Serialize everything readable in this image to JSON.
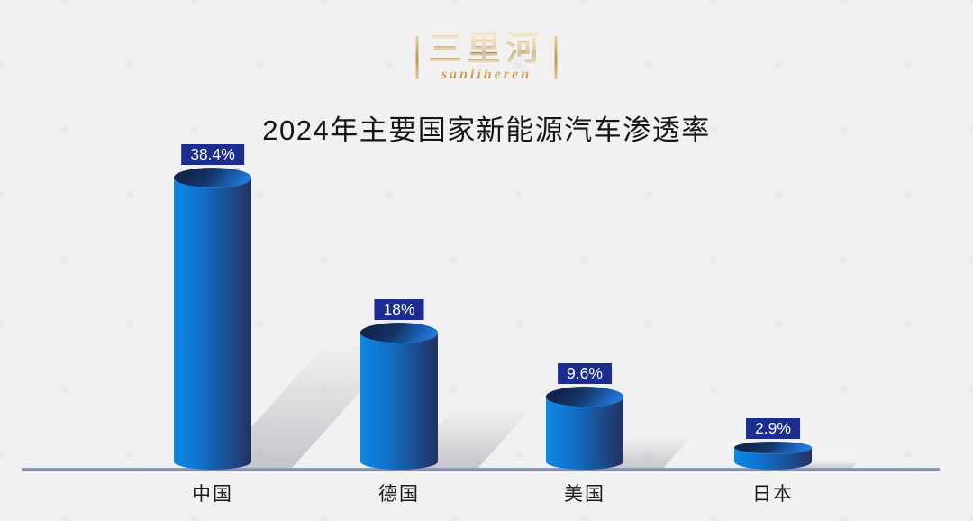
{
  "logo": {
    "title_cn": "三里河",
    "title_en": "sanliheren"
  },
  "header": {
    "title": "2024年主要国家新能源汽车渗透率"
  },
  "chart_data": {
    "type": "bar",
    "bar_style": "3d-cylinder",
    "title": "2024年主要国家新能源汽车渗透率",
    "categories": [
      "中国",
      "德国",
      "美国",
      "日本"
    ],
    "values": [
      38.4,
      18,
      9.6,
      2.9
    ],
    "value_labels": [
      "38.4%",
      "18%",
      "9.6%",
      "2.9%"
    ],
    "unit": "%",
    "xlabel": "",
    "ylabel": "",
    "ylim": [
      0,
      40
    ],
    "grid": false,
    "legend": false,
    "colors": {
      "cylinder_light": "#0c88e4",
      "cylinder_dark": "#243162",
      "badge_bg": "#1c2d91",
      "badge_text": "#ffffff",
      "axis_line": "#8690c2",
      "category_text": "#1a1a1a",
      "title_text": "#161616",
      "logo_gold": "#c9a35f",
      "background": "#ebebec"
    }
  }
}
